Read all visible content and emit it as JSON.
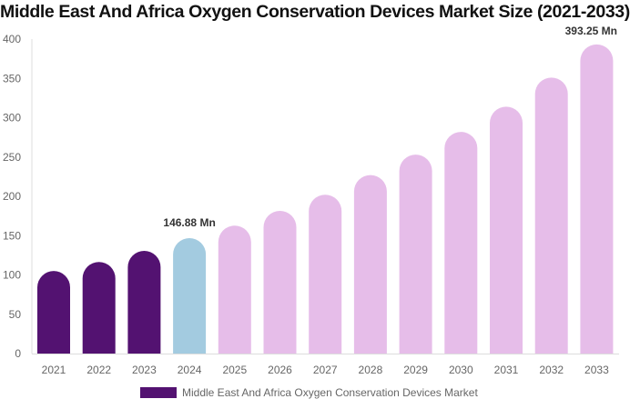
{
  "chart_data": {
    "type": "bar",
    "title": "Middle East And Africa Oxygen Conservation Devices Market Size (2021-2033)",
    "categories": [
      "2021",
      "2022",
      "2023",
      "2024",
      "2025",
      "2026",
      "2027",
      "2028",
      "2029",
      "2030",
      "2031",
      "2032",
      "2033"
    ],
    "series": [
      {
        "name": "Middle East And Africa Oxygen Conservation Devices Market",
        "values": [
          105,
          116.5,
          130.7,
          146.88,
          162.7,
          181.5,
          202,
          227,
          253,
          282,
          314,
          351,
          393.25
        ]
      }
    ],
    "annotations": [
      {
        "category": "2024",
        "text": "146.88 Mn"
      },
      {
        "category": "2033",
        "text": "393.25 Mn"
      }
    ],
    "ylim": [
      0,
      400
    ],
    "yticks": [
      0,
      50,
      100,
      150,
      200,
      250,
      300,
      350,
      400
    ],
    "grid": false,
    "legend": "bottom",
    "colors": {
      "historical": "#531271",
      "base_year": "#a3cbe0",
      "forecast": "#e6bde9"
    }
  }
}
